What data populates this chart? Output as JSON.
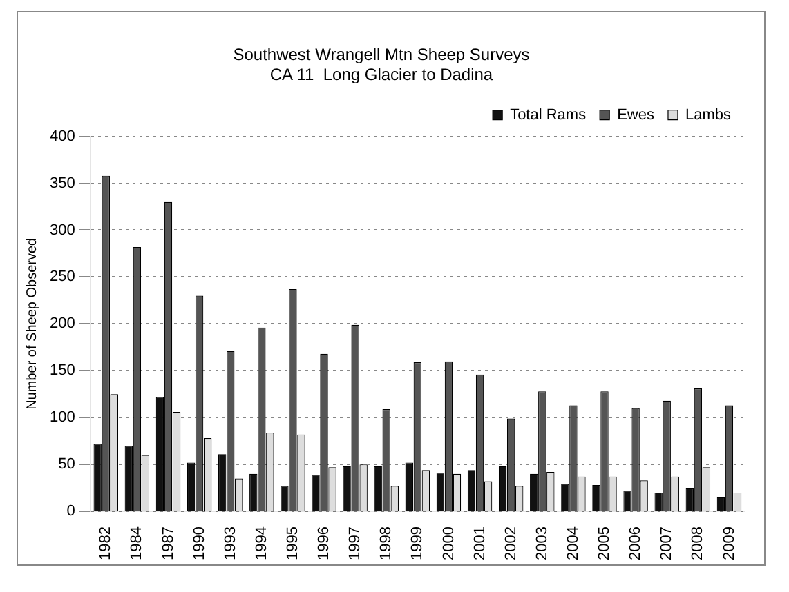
{
  "chart_data": {
    "type": "bar",
    "title": [
      "Southwest Wrangell Mtn Sheep Surveys",
      "CA 11  Long Glacier to Dadina"
    ],
    "ylabel": "Number of Sheep Observed",
    "categories": [
      "1982",
      "1984",
      "1987",
      "1990",
      "1993",
      "1994",
      "1995",
      "1996",
      "1997",
      "1998",
      "1999",
      "2000",
      "2001",
      "2002",
      "2003",
      "2004",
      "2005",
      "2006",
      "2007",
      "2008",
      "2009"
    ],
    "series": [
      {
        "name": "Total Rams",
        "color": "#111111",
        "values": [
          72,
          70,
          122,
          52,
          61,
          40,
          27,
          39,
          48,
          48,
          52,
          41,
          44,
          48,
          40,
          29,
          28,
          22,
          20,
          25,
          15
        ]
      },
      {
        "name": "Ewes",
        "color": "#555555",
        "values": [
          358,
          282,
          330,
          230,
          171,
          196,
          237,
          168,
          199,
          109,
          159,
          160,
          146,
          99,
          128,
          113,
          128,
          110,
          118,
          131,
          113
        ]
      },
      {
        "name": "Lambs",
        "color": "#dddddd",
        "values": [
          125,
          60,
          106,
          78,
          35,
          84,
          82,
          47,
          50,
          27,
          44,
          40,
          32,
          27,
          42,
          37,
          37,
          33,
          37,
          47,
          20
        ]
      }
    ],
    "ylim": [
      0,
      400
    ],
    "yticks": [
      0,
      50,
      100,
      150,
      200,
      250,
      300,
      350,
      400
    ],
    "grid": "y",
    "legend": "top right"
  }
}
